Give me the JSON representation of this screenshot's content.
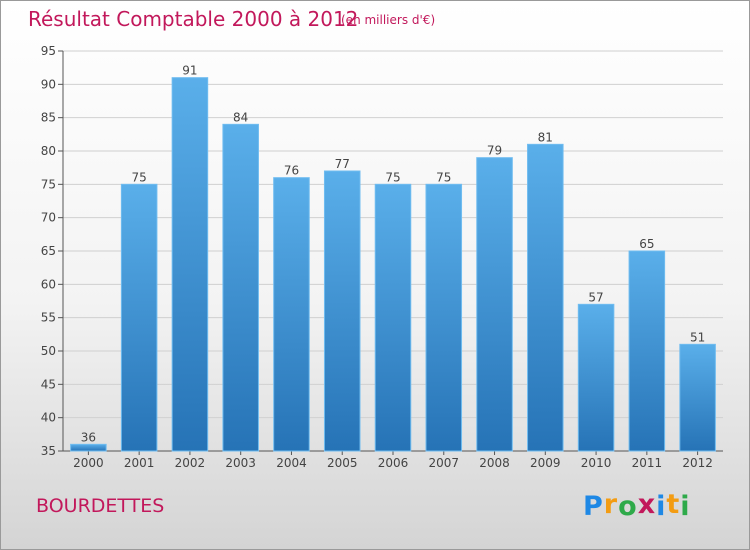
{
  "header": {
    "title": "Résultat Comptable 2000 à 2012",
    "unit": "(en milliers d'€)"
  },
  "footer": {
    "commune": "BOURDETTES",
    "logo_letters": [
      "P",
      "r",
      "o",
      "x",
      "i",
      "t",
      "i"
    ],
    "logo_colors": [
      "#1e88e5",
      "#f39c12",
      "#2eaa4a",
      "#c2185b",
      "#1e88e5",
      "#f39c12",
      "#2eaa4a"
    ]
  },
  "chart_data": {
    "type": "bar",
    "title": "Résultat Comptable 2000 à 2012",
    "subtitle": "(en milliers d'€)",
    "categories": [
      "2000",
      "2001",
      "2002",
      "2003",
      "2004",
      "2005",
      "2006",
      "2007",
      "2008",
      "2009",
      "2010",
      "2011",
      "2012"
    ],
    "values": [
      36,
      75,
      91,
      84,
      76,
      77,
      75,
      75,
      79,
      81,
      57,
      65,
      51
    ],
    "data_labels": [
      "36",
      "75",
      "91",
      "84",
      "76",
      "77",
      "75",
      "75",
      "79",
      "81",
      "57",
      "65",
      "51"
    ],
    "ylim": [
      35,
      95
    ],
    "yticks": [
      35,
      40,
      45,
      50,
      55,
      60,
      65,
      70,
      75,
      80,
      85,
      90,
      95
    ],
    "grid": true,
    "bar_color_top": "#5aafea",
    "bar_color_bottom": "#2673b6",
    "grid_color": "#d0d0d0",
    "text_color": "#444444"
  }
}
